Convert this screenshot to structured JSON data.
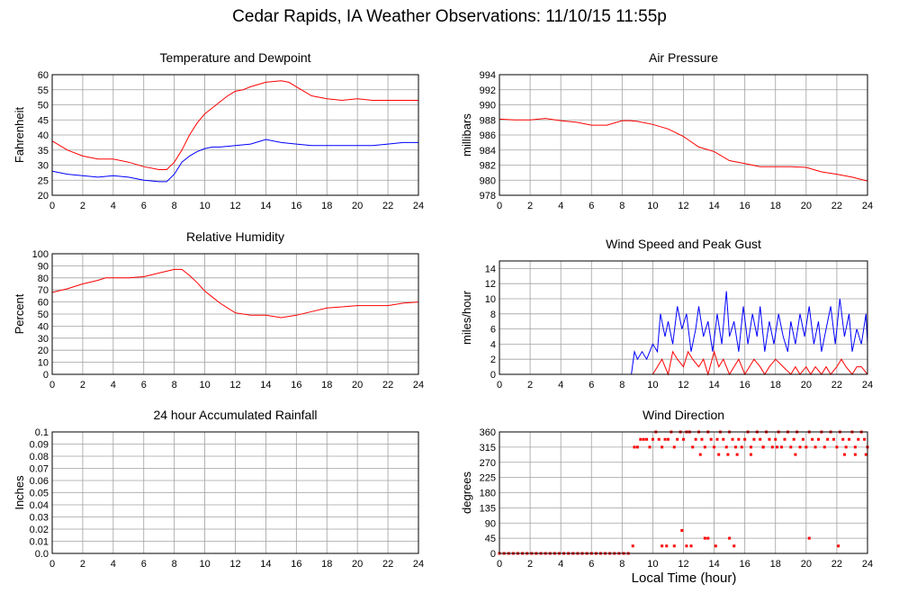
{
  "title": "Cedar Rapids, IA Weather Observations: 11/10/15 11:55p",
  "shared_xlabel": "Local Time (hour)",
  "colors": {
    "series_red": "#ff0000",
    "series_blue": "#0000ff",
    "grid": "#a0a0a0",
    "frame": "#000000"
  },
  "chart_data": [
    {
      "type": "line",
      "title": "Temperature and Dewpoint",
      "ylabel": "Fahrenheit",
      "xlim": [
        0,
        24
      ],
      "ylim": [
        20,
        60
      ],
      "x_ticks": [
        0,
        2,
        4,
        6,
        8,
        10,
        12,
        14,
        16,
        18,
        20,
        22,
        24
      ],
      "y_ticks": [
        20,
        25,
        30,
        35,
        40,
        45,
        50,
        55,
        60
      ],
      "grid": true,
      "series": [
        {
          "color": "#ff0000",
          "x": [
            0,
            1,
            2,
            3,
            4,
            5,
            6,
            7,
            7.5,
            8,
            8.5,
            9,
            9.5,
            10,
            10.5,
            11,
            11.5,
            12,
            12.5,
            13,
            14,
            15,
            15.5,
            16,
            17,
            18,
            19,
            20,
            21,
            22,
            23,
            24
          ],
          "y": [
            38,
            35,
            33,
            32,
            32,
            31,
            29.5,
            28.5,
            28.5,
            31,
            35,
            40,
            44,
            47,
            49,
            51,
            53,
            54.5,
            55,
            56,
            57.5,
            58,
            57.5,
            56,
            53,
            52,
            51.5,
            52,
            51.5,
            51.5,
            51.5,
            51.5
          ]
        },
        {
          "color": "#0000ff",
          "x": [
            0,
            1,
            2,
            3,
            4,
            5,
            6,
            7,
            7.5,
            8,
            8.5,
            9,
            9.5,
            10,
            10.5,
            11,
            12,
            13,
            14,
            15,
            16,
            17,
            18,
            19,
            20,
            21,
            22,
            23,
            24
          ],
          "y": [
            28,
            27,
            26.5,
            26,
            26.5,
            26,
            25,
            24.5,
            24.5,
            27,
            31,
            33,
            34.5,
            35.5,
            36,
            36,
            36.5,
            37,
            38.5,
            37.5,
            37,
            36.5,
            36.5,
            36.5,
            36.5,
            36.5,
            37,
            37.5,
            37.5
          ]
        }
      ]
    },
    {
      "type": "line",
      "title": "Air Pressure",
      "ylabel": "millibars",
      "xlim": [
        0,
        24
      ],
      "ylim": [
        978,
        994
      ],
      "x_ticks": [
        0,
        2,
        4,
        6,
        8,
        10,
        12,
        14,
        16,
        18,
        20,
        22,
        24
      ],
      "y_ticks": [
        978,
        980,
        982,
        984,
        986,
        988,
        990,
        992,
        994
      ],
      "grid": true,
      "series": [
        {
          "color": "#ff0000",
          "x": [
            0,
            1,
            2,
            3,
            4,
            5,
            6,
            7,
            8,
            8.5,
            9,
            10,
            11,
            12,
            13,
            14,
            15,
            16,
            17,
            18,
            19,
            20,
            21,
            22,
            23,
            24
          ],
          "y": [
            988.1,
            988,
            988,
            988.2,
            987.9,
            987.7,
            987.3,
            987.3,
            987.9,
            987.9,
            987.8,
            987.4,
            986.8,
            985.8,
            984.4,
            983.8,
            982.6,
            982.2,
            981.8,
            981.8,
            981.8,
            981.7,
            981.1,
            980.8,
            980.4,
            979.9
          ]
        }
      ]
    },
    {
      "type": "line",
      "title": "Relative Humidity",
      "ylabel": "Percent",
      "xlim": [
        0,
        24
      ],
      "ylim": [
        0,
        100
      ],
      "x_ticks": [
        0,
        2,
        4,
        6,
        8,
        10,
        12,
        14,
        16,
        18,
        20,
        22,
        24
      ],
      "y_ticks": [
        0,
        10,
        20,
        30,
        40,
        50,
        60,
        70,
        80,
        90,
        100
      ],
      "grid": true,
      "series": [
        {
          "color": "#ff0000",
          "x": [
            0,
            1,
            2,
            3,
            3.5,
            4,
            5,
            6,
            7,
            8,
            8.5,
            9,
            9.5,
            10,
            10.5,
            11,
            11.5,
            12,
            13,
            14,
            15,
            16,
            17,
            18,
            19,
            20,
            21,
            22,
            22.5,
            23,
            24
          ],
          "y": [
            68,
            71,
            75,
            78,
            80,
            80,
            80,
            81,
            84,
            87,
            87,
            82,
            76,
            69,
            64,
            59,
            55,
            51,
            49,
            49,
            47,
            49,
            52,
            55,
            56,
            57,
            57,
            57,
            58,
            59,
            60
          ]
        }
      ]
    },
    {
      "type": "line",
      "title": "Wind Speed and Peak Gust",
      "ylabel": "miles/hour",
      "xlim": [
        0,
        24
      ],
      "ylim": [
        0,
        15
      ],
      "x_ticks": [
        0,
        2,
        4,
        6,
        8,
        10,
        12,
        14,
        16,
        18,
        20,
        22,
        24
      ],
      "y_ticks": [
        0,
        2,
        4,
        6,
        8,
        10,
        12,
        14
      ],
      "grid": true,
      "series": [
        {
          "color": "#0000ff",
          "x": [
            0,
            8.6,
            8.8,
            9,
            9.3,
            9.6,
            9.8,
            10,
            10.3,
            10.5,
            10.8,
            11,
            11.3,
            11.6,
            11.9,
            12.2,
            12.5,
            12.8,
            13,
            13.3,
            13.6,
            13.9,
            14.2,
            14.5,
            14.8,
            15,
            15.3,
            15.6,
            15.9,
            16.2,
            16.5,
            16.8,
            17,
            17.3,
            17.6,
            17.9,
            18.2,
            18.5,
            18.8,
            19,
            19.3,
            19.6,
            19.9,
            20.2,
            20.5,
            20.8,
            21,
            21.3,
            21.6,
            21.9,
            22.2,
            22.5,
            22.8,
            23,
            23.3,
            23.6,
            23.9,
            24
          ],
          "y": [
            0,
            0,
            3,
            2,
            3,
            2,
            3,
            4,
            3,
            8,
            5,
            7,
            4,
            9,
            6,
            8,
            3,
            6,
            9,
            5,
            7,
            3,
            8,
            4,
            11,
            5,
            7,
            3,
            9,
            4,
            8,
            5,
            9,
            3,
            7,
            4,
            8,
            5,
            3,
            7,
            4,
            8,
            5,
            9,
            4,
            7,
            3,
            6,
            9,
            4,
            10,
            5,
            8,
            3,
            6,
            4,
            8,
            4
          ]
        },
        {
          "color": "#ff0000",
          "x": [
            0,
            10,
            10.3,
            10.6,
            11,
            11.3,
            11.6,
            12,
            12.3,
            12.6,
            13,
            13.3,
            13.6,
            14,
            14.3,
            14.6,
            15,
            15.3,
            15.6,
            16,
            16.3,
            16.6,
            17,
            17.3,
            17.6,
            18,
            18.5,
            19,
            19.3,
            19.6,
            20,
            20.3,
            20.6,
            21,
            21.3,
            21.6,
            22,
            22.3,
            22.6,
            23,
            23.3,
            23.6,
            24
          ],
          "y": [
            0,
            0,
            1,
            2,
            0,
            3,
            2,
            1,
            3,
            2,
            1,
            2,
            0,
            3,
            1,
            2,
            0,
            1,
            2,
            0,
            1,
            2,
            1,
            0,
            1,
            2,
            1,
            0,
            1,
            0,
            1,
            0,
            1,
            0,
            1,
            0,
            1,
            2,
            1,
            0,
            1,
            1,
            0
          ]
        }
      ]
    },
    {
      "type": "line",
      "title": "24 hour Accumulated Rainfall",
      "ylabel": "Inches",
      "xlim": [
        0,
        24
      ],
      "ylim": [
        0,
        0.1
      ],
      "x_ticks": [
        0,
        2,
        4,
        6,
        8,
        10,
        12,
        14,
        16,
        18,
        20,
        22,
        24
      ],
      "y_ticks": [
        "0.0",
        "0.01",
        "0.02",
        "0.03",
        "0.04",
        "0.05",
        "0.06",
        "0.07",
        "0.08",
        "0.09",
        "0.1"
      ],
      "grid": true,
      "series": [
        {
          "color": "#ff0000",
          "x": [
            0,
            24
          ],
          "y": [
            0,
            0
          ]
        }
      ]
    },
    {
      "type": "scatter",
      "title": "Wind Direction",
      "ylabel": "degrees",
      "xlim": [
        0,
        24
      ],
      "ylim": [
        0,
        360
      ],
      "x_ticks": [
        0,
        2,
        4,
        6,
        8,
        10,
        12,
        14,
        16,
        18,
        20,
        22,
        24
      ],
      "y_ticks": [
        0,
        45,
        90,
        135,
        180,
        225,
        270,
        315,
        360
      ],
      "grid": true,
      "series": [
        {
          "color": "#ff0000",
          "x": [
            0,
            0.3,
            0.6,
            0.9,
            1.2,
            1.5,
            1.8,
            2.1,
            2.4,
            2.7,
            3,
            3.3,
            3.6,
            3.9,
            4.2,
            4.5,
            4.8,
            5.1,
            5.4,
            5.7,
            6,
            6.3,
            6.6,
            6.9,
            7.2,
            7.5,
            7.8,
            8.1,
            8.4,
            8.7,
            8.8,
            9,
            9.2,
            9.4,
            9.6,
            9.8,
            10,
            10.2,
            10.4,
            10.6,
            10.8,
            11,
            11.2,
            11.4,
            11.6,
            11.8,
            12,
            12.2,
            12.4,
            12.6,
            12.8,
            13,
            13.2,
            13.4,
            13.6,
            13.8,
            14,
            14.2,
            14.4,
            14.6,
            14.8,
            15,
            15.2,
            15.4,
            15.6,
            15.8,
            16,
            16.2,
            16.4,
            16.6,
            16.8,
            17,
            17.2,
            17.4,
            17.6,
            17.8,
            18,
            18.2,
            18.4,
            18.6,
            18.8,
            19,
            19.2,
            19.4,
            19.6,
            19.8,
            20,
            20.2,
            20.4,
            20.6,
            20.8,
            21,
            21.2,
            21.4,
            21.6,
            21.8,
            22,
            22.2,
            22.4,
            22.6,
            22.8,
            23,
            23.2,
            23.4,
            23.6,
            23.8,
            24,
            11.9,
            10.6,
            10.9,
            11.4,
            12.2,
            12.5,
            13.4,
            13.6,
            14.1,
            15.0,
            15.3,
            20.2,
            22.1,
            14.3,
            13.1,
            15.5,
            14.9,
            16.4,
            17.2,
            19.3,
            18.1,
            22.5,
            23.2,
            23.9
          ],
          "y": [
            0,
            0,
            0,
            0,
            0,
            0,
            0,
            0,
            0,
            0,
            0,
            0,
            0,
            0,
            0,
            0,
            0,
            0,
            0,
            0,
            0,
            0,
            0,
            0,
            0,
            0,
            0,
            0,
            0,
            22,
            315,
            315,
            338,
            338,
            338,
            315,
            338,
            360,
            338,
            315,
            338,
            338,
            360,
            315,
            338,
            360,
            338,
            360,
            360,
            315,
            338,
            360,
            338,
            315,
            360,
            338,
            315,
            338,
            360,
            338,
            315,
            360,
            338,
            315,
            338,
            315,
            338,
            360,
            315,
            338,
            360,
            338,
            315,
            360,
            338,
            315,
            338,
            360,
            315,
            338,
            360,
            315,
            338,
            360,
            315,
            338,
            315,
            360,
            338,
            315,
            338,
            360,
            315,
            338,
            360,
            338,
            315,
            360,
            338,
            315,
            338,
            360,
            315,
            338,
            360,
            338,
            315,
            68,
            22,
            22,
            22,
            22,
            22,
            45,
            45,
            22,
            45,
            22,
            45,
            22,
            293,
            293,
            293,
            293,
            293,
            315,
            293,
            315,
            293,
            293,
            293
          ]
        }
      ]
    }
  ]
}
